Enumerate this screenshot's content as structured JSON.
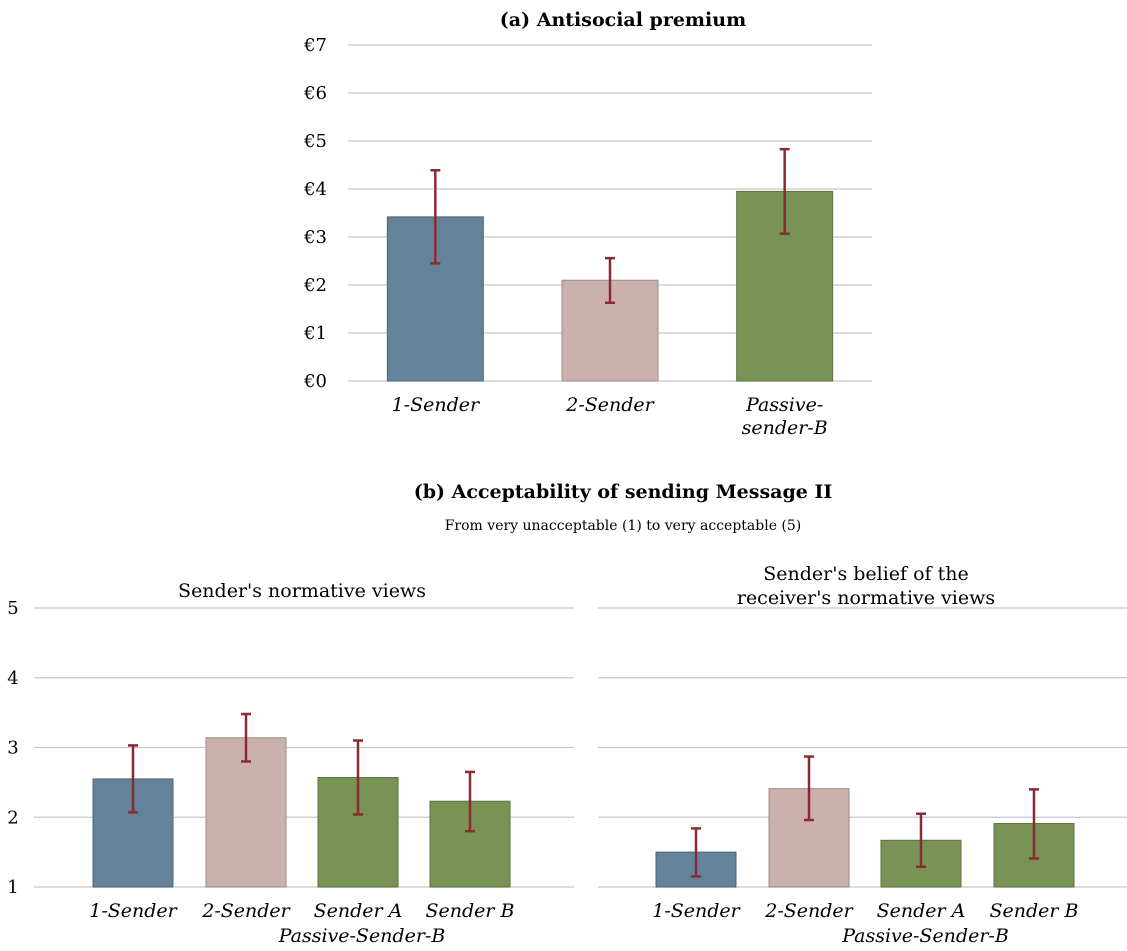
{
  "colors": {
    "blue": "#64839a",
    "pink": "#cbb1ac",
    "green": "#789353",
    "error": "#8b2a33"
  },
  "chart_data": [
    {
      "type": "bar",
      "title": "(a) Antisocial premium",
      "categories": [
        "1-Sender",
        "2-Sender",
        "Passive-sender-B"
      ],
      "category_lines": [
        [
          "1-Sender"
        ],
        [
          "2-Sender"
        ],
        [
          "Passive-",
          "sender-B"
        ]
      ],
      "values": [
        3.42,
        2.1,
        3.95
      ],
      "error_low": [
        2.45,
        1.63,
        3.07
      ],
      "error_high": [
        4.39,
        2.56,
        4.83
      ],
      "bar_colors": [
        "blue",
        "pink",
        "green"
      ],
      "yticks": [
        0,
        1,
        2,
        3,
        4,
        5,
        6,
        7
      ],
      "ytick_labels": [
        "€0",
        "€1",
        "€2",
        "€3",
        "€4",
        "€5",
        "€6",
        "€7"
      ],
      "ylim": [
        0,
        7
      ],
      "grid": true
    },
    {
      "type": "bar",
      "title": "(b) Acceptability of sending Message II",
      "subtitle": "From very unacceptable (1) to very acceptable (5)",
      "panels": [
        {
          "title": "Sender's normative views",
          "categories": [
            "1-Sender",
            "2-Sender",
            "Sender A",
            "Sender B"
          ],
          "group_label": "Passive-Sender-B",
          "values": [
            2.55,
            3.14,
            2.57,
            2.23
          ],
          "error_low": [
            2.07,
            2.8,
            2.04,
            1.8
          ],
          "error_high": [
            3.03,
            3.48,
            3.1,
            2.65
          ],
          "bar_colors": [
            "blue",
            "pink",
            "green",
            "green"
          ]
        },
        {
          "title": "Sender's belief of the receiver's normative views",
          "title_lines": [
            "Sender's belief of the",
            "receiver's normative views"
          ],
          "categories": [
            "1-Sender",
            "2-Sender",
            "Sender A",
            "Sender B"
          ],
          "group_label": "Passive-Sender-B",
          "values": [
            1.5,
            2.41,
            1.67,
            1.91
          ],
          "error_low": [
            1.15,
            1.96,
            1.29,
            1.41
          ],
          "error_high": [
            1.84,
            2.87,
            2.05,
            2.4
          ],
          "bar_colors": [
            "blue",
            "pink",
            "green",
            "green"
          ]
        }
      ],
      "yticks": [
        1,
        2,
        3,
        4,
        5
      ],
      "ytick_labels": [
        "1",
        "2",
        "3",
        "4",
        "5"
      ],
      "ylim": [
        1,
        5
      ],
      "grid": true
    }
  ]
}
